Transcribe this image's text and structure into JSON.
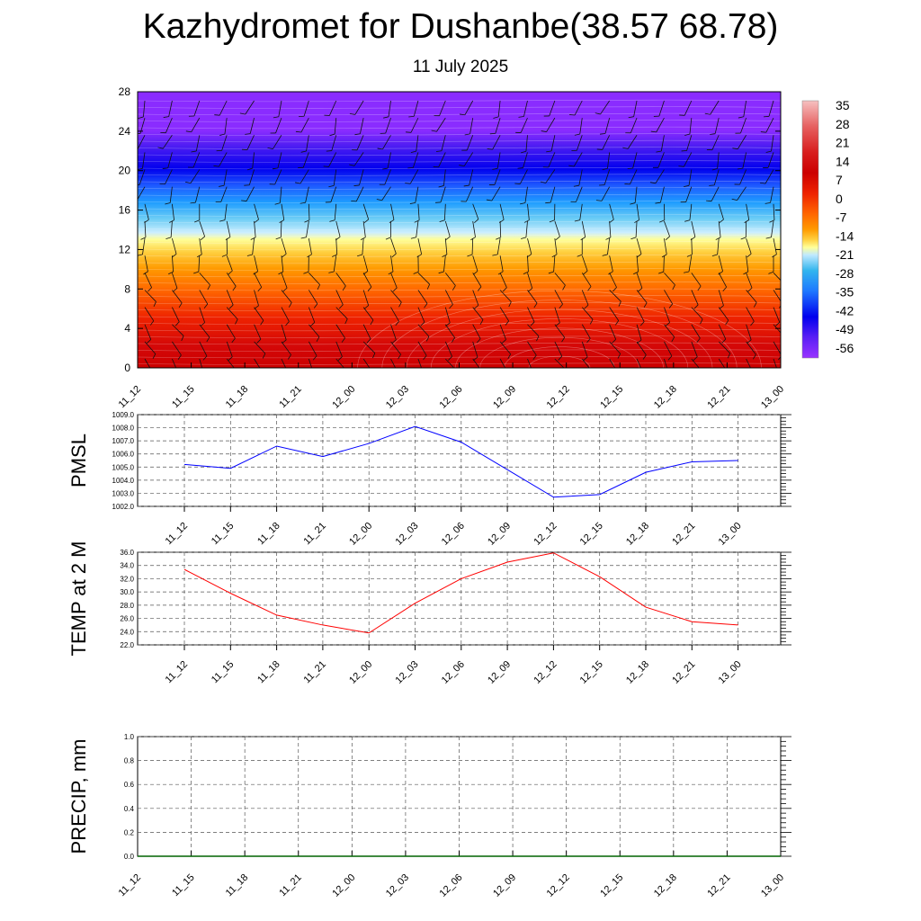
{
  "title": "Kazhydromet for Dushanbe(38.57 68.78)",
  "subtitle": "11 July 2025",
  "chart_data": [
    {
      "type": "heatmap",
      "description_ylim": "height",
      "ylim": [
        0,
        28
      ],
      "y_ticks": [
        "0",
        "4",
        "8",
        "12",
        "16",
        "20",
        "24",
        "28"
      ],
      "x_ticks": [
        "11_12",
        "11_15",
        "11_18",
        "11_21",
        "12_00",
        "12_03",
        "12_06",
        "12_09",
        "12_12",
        "12_15",
        "12_18",
        "12_21",
        "13_00"
      ],
      "colorbar_labels": [
        "35",
        "28",
        "21",
        "14",
        "7",
        "0",
        "-7",
        "-14",
        "-21",
        "-28",
        "-35",
        "-42",
        "-49",
        "-56"
      ],
      "colorbar_colors": [
        "#f6c0c0",
        "#ea6f6f",
        "#db2c2c",
        "#cc0000",
        "#ee2200",
        "#ff6600",
        "#ff9900",
        "#ffd040",
        "#ffff99",
        "#bfe9ff",
        "#33b5ee",
        "#1e78ff",
        "#0000ee",
        "#9933ff"
      ]
    },
    {
      "type": "line",
      "ylabel": "PMSL",
      "ylim": [
        1002.0,
        1009.0
      ],
      "y_ticks": [
        "1002.0",
        "1003.0",
        "1004.0",
        "1005.0",
        "1006.0",
        "1007.0",
        "1008.0",
        "1009.0"
      ],
      "x": [
        "11_12",
        "11_15",
        "11_18",
        "11_21",
        "12_00",
        "12_03",
        "12_06",
        "12_09",
        "12_12",
        "12_15",
        "12_18",
        "12_21",
        "13_00"
      ],
      "values": [
        1005.2,
        1004.9,
        1006.6,
        1005.8,
        1006.8,
        1008.1,
        1006.9,
        1004.8,
        1002.7,
        1002.9,
        1004.6,
        1005.4,
        1005.5
      ],
      "color": "#0000ff"
    },
    {
      "type": "line",
      "ylabel": "TEMP at 2 M",
      "ylim": [
        22.0,
        36.0
      ],
      "y_ticks": [
        "22.0",
        "24.0",
        "26.0",
        "28.0",
        "30.0",
        "32.0",
        "34.0",
        "36.0"
      ],
      "x": [
        "11_12",
        "11_15",
        "11_18",
        "11_21",
        "12_00",
        "12_03",
        "12_06",
        "12_09",
        "12_12",
        "12_15",
        "12_18",
        "12_21",
        "13_00"
      ],
      "values": [
        33.4,
        29.8,
        26.5,
        25.0,
        23.8,
        28.3,
        32.0,
        34.5,
        35.9,
        32.3,
        27.7,
        25.5,
        25.0
      ],
      "color": "#ff0000"
    },
    {
      "type": "line",
      "ylabel": "PRECIP, mm",
      "ylim": [
        0.0,
        1.0
      ],
      "y_ticks": [
        "0.0",
        "0.2",
        "0.4",
        "0.6",
        "0.8",
        "1.0"
      ],
      "x_ticks": [
        "11_12",
        "11_15",
        "11_18",
        "11_21",
        "12_00",
        "12_03",
        "12_06",
        "12_09",
        "12_12",
        "12_15",
        "12_18",
        "12_21",
        "13_00"
      ],
      "values": [
        0,
        0,
        0,
        0,
        0,
        0,
        0,
        0,
        0,
        0,
        0,
        0,
        0
      ],
      "color": "#006400"
    }
  ]
}
